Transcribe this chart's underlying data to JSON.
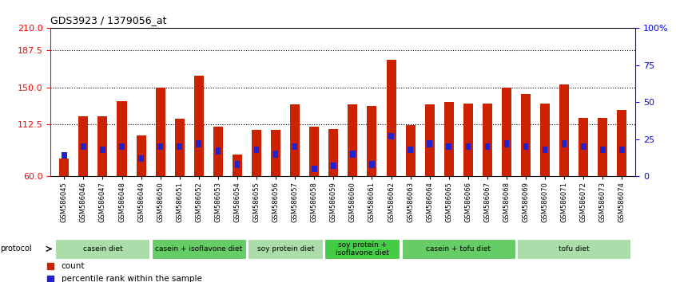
{
  "title": "GDS3923 / 1379056_at",
  "samples": [
    "GSM586045",
    "GSM586046",
    "GSM586047",
    "GSM586048",
    "GSM586049",
    "GSM586050",
    "GSM586051",
    "GSM586052",
    "GSM586053",
    "GSM586054",
    "GSM586055",
    "GSM586056",
    "GSM586057",
    "GSM586058",
    "GSM586059",
    "GSM586060",
    "GSM586061",
    "GSM586062",
    "GSM586063",
    "GSM586064",
    "GSM586065",
    "GSM586066",
    "GSM586067",
    "GSM586068",
    "GSM586069",
    "GSM586070",
    "GSM586071",
    "GSM586072",
    "GSM586073",
    "GSM586074"
  ],
  "count_values": [
    78,
    121,
    121,
    136,
    101,
    150,
    118,
    162,
    110,
    82,
    107,
    107,
    133,
    110,
    108,
    133,
    131,
    178,
    112,
    133,
    135,
    134,
    134,
    150,
    143,
    134,
    153,
    119,
    119,
    127
  ],
  "percentile_values": [
    14,
    20,
    18,
    20,
    12,
    20,
    20,
    22,
    17,
    8,
    18,
    15,
    20,
    5,
    7,
    15,
    8,
    27,
    18,
    22,
    20,
    20,
    20,
    22,
    20,
    18,
    22,
    20,
    18,
    18
  ],
  "y_min": 60,
  "y_max": 210,
  "y_ticks_left": [
    60,
    112.5,
    150,
    187.5,
    210
  ],
  "y_ticks_right_vals": [
    0,
    25,
    50,
    75,
    100
  ],
  "bar_color": "#cc2200",
  "percentile_color": "#2222cc",
  "groups": [
    {
      "label": "casein diet",
      "start": 0,
      "end": 4,
      "color": "#aaddaa"
    },
    {
      "label": "casein + isoflavone diet",
      "start": 5,
      "end": 9,
      "color": "#66cc66"
    },
    {
      "label": "soy protein diet",
      "start": 10,
      "end": 13,
      "color": "#aaddaa"
    },
    {
      "label": "soy protein +\nisoflavone diet",
      "start": 14,
      "end": 17,
      "color": "#44cc44"
    },
    {
      "label": "casein + tofu diet",
      "start": 18,
      "end": 23,
      "color": "#66cc66"
    },
    {
      "label": "tofu diet",
      "start": 24,
      "end": 29,
      "color": "#aaddaa"
    }
  ],
  "protocol_label": "protocol",
  "legend_count_label": "count",
  "legend_percentile_label": "percentile rank within the sample",
  "bar_width": 0.5
}
